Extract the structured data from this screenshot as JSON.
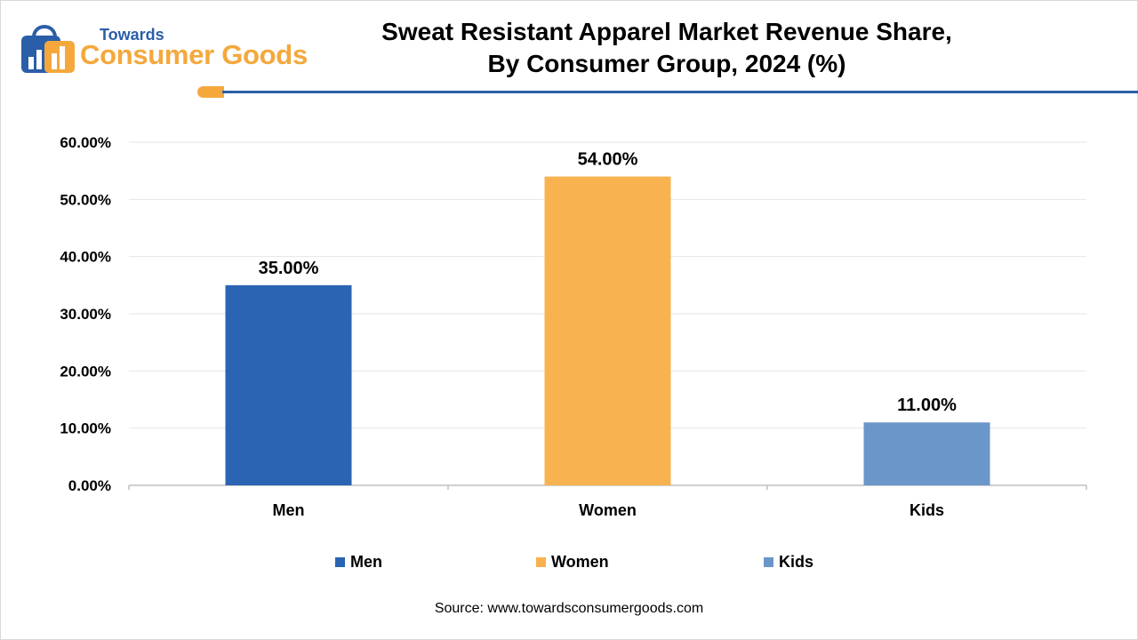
{
  "header": {
    "logo_small": "Towards",
    "logo_big": "Consumer Goods",
    "title_line1": "Sweat Resistant Apparel Market Revenue Share,",
    "title_line2": "By Consumer Group, 2024 (%)"
  },
  "colors": {
    "accent_blue": "#2a5ea8",
    "accent_orange": "#f4a83c"
  },
  "chart_data": {
    "type": "bar",
    "title": "Sweat Resistant Apparel Market Revenue Share, By Consumer Group, 2024 (%)",
    "categories": [
      "Men",
      "Women",
      "Kids"
    ],
    "values": [
      35.0,
      54.0,
      11.0
    ],
    "data_labels": [
      "35.00%",
      "54.00%",
      "11.00%"
    ],
    "colors": [
      "#2b64b3",
      "#f8b250",
      "#6b96c9"
    ],
    "ylim": [
      0,
      60
    ],
    "yticks": [
      0,
      10,
      20,
      30,
      40,
      50,
      60
    ],
    "ytick_labels": [
      "0.00%",
      "10.00%",
      "20.00%",
      "30.00%",
      "40.00%",
      "50.00%",
      "60.00%"
    ],
    "xlabel": "",
    "ylabel": "",
    "grid": true,
    "legend": {
      "position": "bottom",
      "entries": [
        "Men",
        "Women",
        "Kids"
      ]
    }
  },
  "footer": {
    "source": "Source: www.towardsconsumergoods.com"
  }
}
